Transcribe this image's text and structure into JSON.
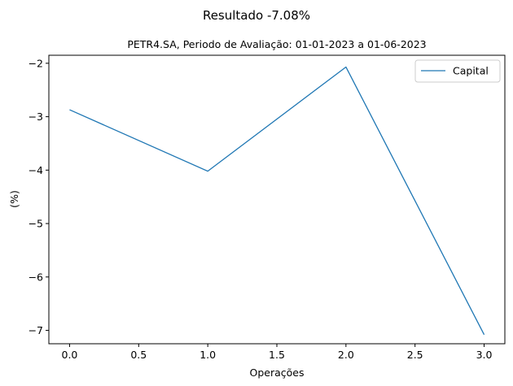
{
  "chart_data": {
    "type": "line",
    "suptitle": "Resultado -7.08%",
    "title": "PETR4.SA, Periodo de Avaliação: 01-01-2023 a 01-06-2023",
    "xlabel": "Operações",
    "ylabel": "(%)",
    "xlim": [
      -0.15,
      3.15
    ],
    "ylim": [
      -7.25,
      -1.85
    ],
    "xticks": [
      0.0,
      0.5,
      1.0,
      1.5,
      2.0,
      2.5,
      3.0
    ],
    "xtick_labels": [
      "0.0",
      "0.5",
      "1.0",
      "1.5",
      "2.0",
      "2.5",
      "3.0"
    ],
    "yticks": [
      -2,
      -3,
      -4,
      -5,
      -6,
      -7
    ],
    "ytick_labels": [
      "−2",
      "−3",
      "−4",
      "−5",
      "−6",
      "−7"
    ],
    "grid": false,
    "legend_position": "top-right",
    "series": [
      {
        "name": "Capital",
        "color": "#1f77b4",
        "x": [
          0,
          1,
          2,
          3
        ],
        "y": [
          -2.87,
          -4.02,
          -2.07,
          -7.08
        ]
      }
    ]
  }
}
